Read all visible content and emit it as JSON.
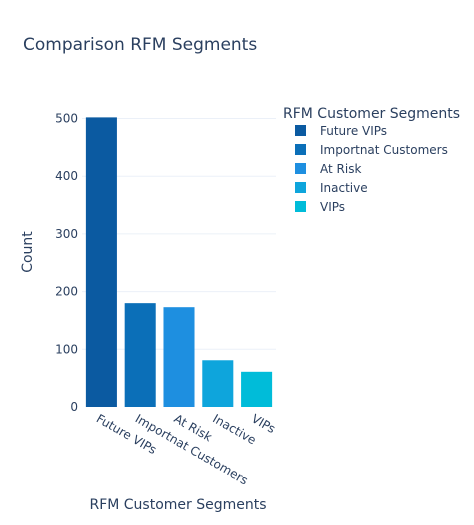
{
  "chart_data": {
    "type": "bar",
    "title": "Comparison RFM Segments",
    "xlabel": "RFM Customer Segments",
    "ylabel": "Count",
    "categories": [
      "Future VIPs",
      "Importnat Customers",
      "At Risk",
      "Inactive",
      "VIPs"
    ],
    "values": [
      502,
      180,
      173,
      81,
      61
    ],
    "colors": [
      "#0b5aa1",
      "#0b6fb8",
      "#1e8fe0",
      "#0ea5dc",
      "#00bcd9"
    ],
    "ylim": [
      0,
      520
    ],
    "yticks": [
      0,
      100,
      200,
      300,
      400,
      500
    ],
    "grid": true,
    "legend": {
      "title": "RFM Customer Segments",
      "placement": "right",
      "entries": [
        "Future VIPs",
        "Importnat Customers",
        "At Risk",
        "Inactive",
        "VIPs"
      ]
    }
  }
}
